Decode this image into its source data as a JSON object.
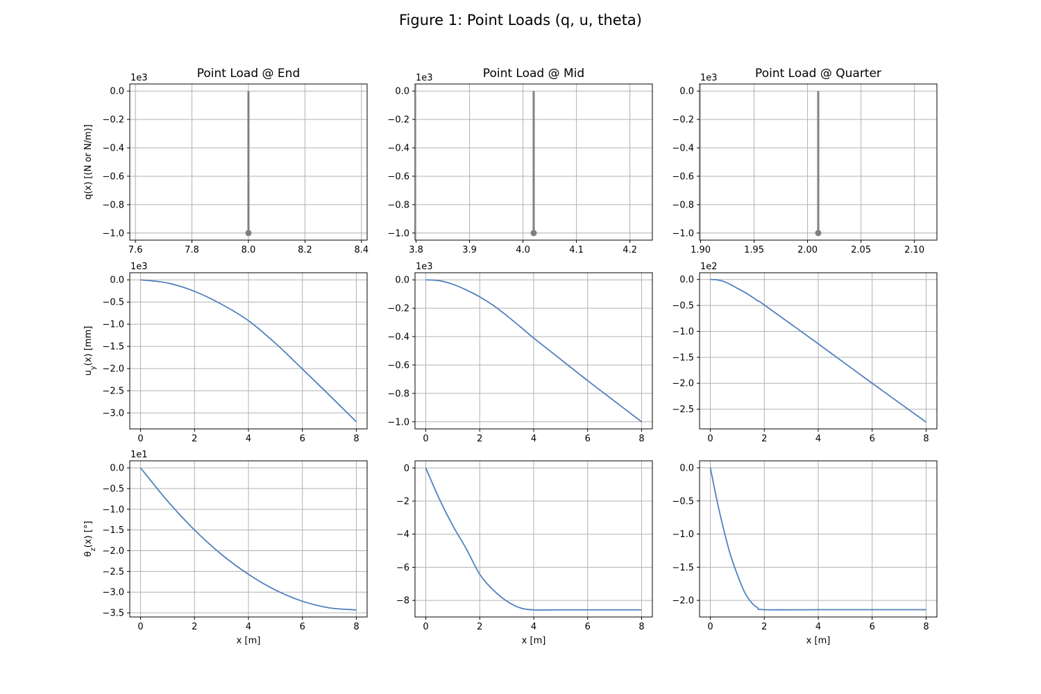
{
  "figure": {
    "title": "Figure 1: Point Loads (q, u, theta)"
  },
  "colors": {
    "curve": "#4f81bd",
    "stem": "#808080",
    "grid": "#b0b0b0",
    "axes": "#000000"
  },
  "chart_data": [
    {
      "id": "q-end",
      "type": "stem",
      "title": "Point Load @ End",
      "xlabel": "",
      "ylabel": "q(x) [(N or N/m)]",
      "exponent": "1e3",
      "xlim": [
        7.58,
        8.42
      ],
      "ylim": [
        -1.05,
        0.05
      ],
      "xticks": [
        7.6,
        7.8,
        8.0,
        8.2,
        8.4
      ],
      "xtick_labels": [
        "7.6",
        "7.8",
        "8.0",
        "8.2",
        "8.4"
      ],
      "yticks": [
        0.0,
        -0.2,
        -0.4,
        -0.6,
        -0.8,
        -1.0
      ],
      "ytick_labels": [
        "0.0",
        "−0.2",
        "−0.4",
        "−0.6",
        "−0.8",
        "−1.0"
      ],
      "points": [
        {
          "x": 8.0,
          "y": -1.0
        }
      ]
    },
    {
      "id": "q-mid",
      "type": "stem",
      "title": "Point Load @ Mid",
      "xlabel": "",
      "ylabel": "",
      "exponent": "1e3",
      "xlim": [
        3.798,
        4.242
      ],
      "ylim": [
        -1.05,
        0.05
      ],
      "xticks": [
        3.8,
        3.9,
        4.0,
        4.1,
        4.2
      ],
      "xtick_labels": [
        "3.8",
        "3.9",
        "4.0",
        "4.1",
        "4.2"
      ],
      "yticks": [
        0.0,
        -0.2,
        -0.4,
        -0.6,
        -0.8,
        -1.0
      ],
      "ytick_labels": [
        "0.0",
        "−0.2",
        "−0.4",
        "−0.6",
        "−0.8",
        "−1.0"
      ],
      "points": [
        {
          "x": 4.02,
          "y": -1.0
        }
      ]
    },
    {
      "id": "q-quarter",
      "type": "stem",
      "title": "Point Load @ Quarter",
      "xlabel": "",
      "ylabel": "",
      "exponent": "1e3",
      "xlim": [
        1.899,
        2.121
      ],
      "ylim": [
        -1.05,
        0.05
      ],
      "xticks": [
        1.9,
        1.95,
        2.0,
        2.05,
        2.1
      ],
      "xtick_labels": [
        "1.90",
        "1.95",
        "2.00",
        "2.05",
        "2.10"
      ],
      "yticks": [
        0.0,
        -0.2,
        -0.4,
        -0.6,
        -0.8,
        -1.0
      ],
      "ytick_labels": [
        "0.0",
        "−0.2",
        "−0.4",
        "−0.6",
        "−0.8",
        "−1.0"
      ],
      "points": [
        {
          "x": 2.01,
          "y": -1.0
        }
      ]
    },
    {
      "id": "u-end",
      "type": "line",
      "title": "",
      "xlabel": "",
      "ylabel": "u_y(x) [mm]",
      "exponent": "1e3",
      "xlim": [
        -0.4,
        8.4
      ],
      "ylim": [
        -3.36,
        0.16
      ],
      "xticks": [
        0,
        2,
        4,
        6,
        8
      ],
      "xtick_labels": [
        "0",
        "2",
        "4",
        "6",
        "8"
      ],
      "yticks": [
        0.0,
        -0.5,
        -1.0,
        -1.5,
        -2.0,
        -2.5,
        -3.0
      ],
      "ytick_labels": [
        "0.0",
        "−0.5",
        "−1.0",
        "−1.5",
        "−2.0",
        "−2.5",
        "−3.0"
      ],
      "x": [
        0,
        1,
        2,
        3,
        4,
        5,
        6,
        7,
        8
      ],
      "y": [
        0.0,
        -0.07,
        -0.26,
        -0.55,
        -0.92,
        -1.43,
        -2.01,
        -2.6,
        -3.2
      ]
    },
    {
      "id": "u-mid",
      "type": "line",
      "title": "",
      "xlabel": "",
      "ylabel": "",
      "exponent": "1e3",
      "xlim": [
        -0.4,
        8.4
      ],
      "ylim": [
        -1.05,
        0.05
      ],
      "xticks": [
        0,
        2,
        4,
        6,
        8
      ],
      "xtick_labels": [
        "0",
        "2",
        "4",
        "6",
        "8"
      ],
      "yticks": [
        0.0,
        -0.2,
        -0.4,
        -0.6,
        -0.8,
        -1.0
      ],
      "ytick_labels": [
        "0.0",
        "−0.2",
        "−0.4",
        "−0.6",
        "−0.8",
        "−1.0"
      ],
      "x": [
        0,
        0.5,
        1,
        1.5,
        2,
        2.5,
        3,
        3.5,
        4,
        5,
        6,
        7,
        8
      ],
      "y": [
        0.0,
        -0.006,
        -0.031,
        -0.071,
        -0.12,
        -0.18,
        -0.252,
        -0.33,
        -0.41,
        -0.56,
        -0.71,
        -0.855,
        -1.0
      ],
      "note": ""
    },
    {
      "id": "u-quarter",
      "type": "line",
      "title": "",
      "xlabel": "",
      "ylabel": "",
      "exponent": "1e2",
      "xlim": [
        -0.4,
        8.4
      ],
      "ylim": [
        -2.88,
        0.13
      ],
      "xticks": [
        0,
        2,
        4,
        6,
        8
      ],
      "xtick_labels": [
        "0",
        "2",
        "4",
        "6",
        "8"
      ],
      "yticks": [
        0.0,
        -0.5,
        -1.0,
        -1.5,
        -2.0,
        -2.5
      ],
      "ytick_labels": [
        "0.0",
        "−0.5",
        "−1.0",
        "−1.5",
        "−2.0",
        "−2.5"
      ],
      "x": [
        0,
        0.25,
        0.5,
        0.75,
        1,
        1.25,
        1.5,
        1.75,
        2,
        4,
        6,
        8
      ],
      "y": [
        0.0,
        -0.007,
        -0.04,
        -0.098,
        -0.17,
        -0.24,
        -0.32,
        -0.41,
        -0.49,
        -1.24,
        -2.0,
        -2.75
      ]
    },
    {
      "id": "theta-end",
      "type": "line",
      "title": "",
      "xlabel": "x [m]",
      "ylabel": "θ_z(x) [°]",
      "exponent": "1e1",
      "xlim": [
        -0.4,
        8.4
      ],
      "ylim": [
        -3.6,
        0.17
      ],
      "xticks": [
        0,
        2,
        4,
        6,
        8
      ],
      "xtick_labels": [
        "0",
        "2",
        "4",
        "6",
        "8"
      ],
      "yticks": [
        0.0,
        -0.5,
        -1.0,
        -1.5,
        -2.0,
        -2.5,
        -3.0,
        -3.5
      ],
      "ytick_labels": [
        "0.0",
        "−0.5",
        "−1.0",
        "−1.5",
        "−2.0",
        "−2.5",
        "−3.0",
        "−3.5"
      ],
      "x": [
        0,
        1,
        2,
        3,
        4,
        5,
        6,
        7,
        8
      ],
      "y": [
        0.0,
        -0.8,
        -1.5,
        -2.09,
        -2.57,
        -2.95,
        -3.22,
        -3.38,
        -3.43
      ]
    },
    {
      "id": "theta-mid",
      "type": "line",
      "title": "",
      "xlabel": "x [m]",
      "ylabel": "",
      "exponent": "",
      "xlim": [
        -0.4,
        8.4
      ],
      "ylim": [
        -9.0,
        0.43
      ],
      "xticks": [
        0,
        2,
        4,
        6,
        8
      ],
      "xtick_labels": [
        "0",
        "2",
        "4",
        "6",
        "8"
      ],
      "yticks": [
        0,
        -2,
        -4,
        -6,
        -8
      ],
      "ytick_labels": [
        "0",
        "−2",
        "−4",
        "−6",
        "−8"
      ],
      "x": [
        0,
        0.5,
        1,
        1.5,
        2,
        2.5,
        3,
        3.5,
        4,
        5,
        6,
        7,
        8
      ],
      "y": [
        0.0,
        -1.87,
        -3.48,
        -4.88,
        -6.42,
        -7.37,
        -8.04,
        -8.45,
        -8.57,
        -8.57,
        -8.57,
        -8.57,
        -8.57
      ]
    },
    {
      "id": "theta-quarter",
      "type": "line",
      "title": "",
      "xlabel": "x [m]",
      "ylabel": "",
      "exponent": "",
      "xlim": [
        -0.4,
        8.4
      ],
      "ylim": [
        -2.25,
        0.105
      ],
      "xticks": [
        0,
        2,
        4,
        6,
        8
      ],
      "xtick_labels": [
        "0",
        "2",
        "4",
        "6",
        "8"
      ],
      "yticks": [
        0.0,
        -0.5,
        -1.0,
        -1.5,
        -2.0
      ],
      "ytick_labels": [
        "0.0",
        "−0.5",
        "−1.0",
        "−1.5",
        "−2.0"
      ],
      "x": [
        0,
        0.25,
        0.5,
        0.75,
        1,
        1.25,
        1.5,
        1.75,
        2,
        4,
        6,
        8
      ],
      "y": [
        0.0,
        -0.5,
        -0.94,
        -1.32,
        -1.61,
        -1.86,
        -2.02,
        -2.11,
        -2.14,
        -2.14,
        -2.14,
        -2.14
      ]
    }
  ]
}
